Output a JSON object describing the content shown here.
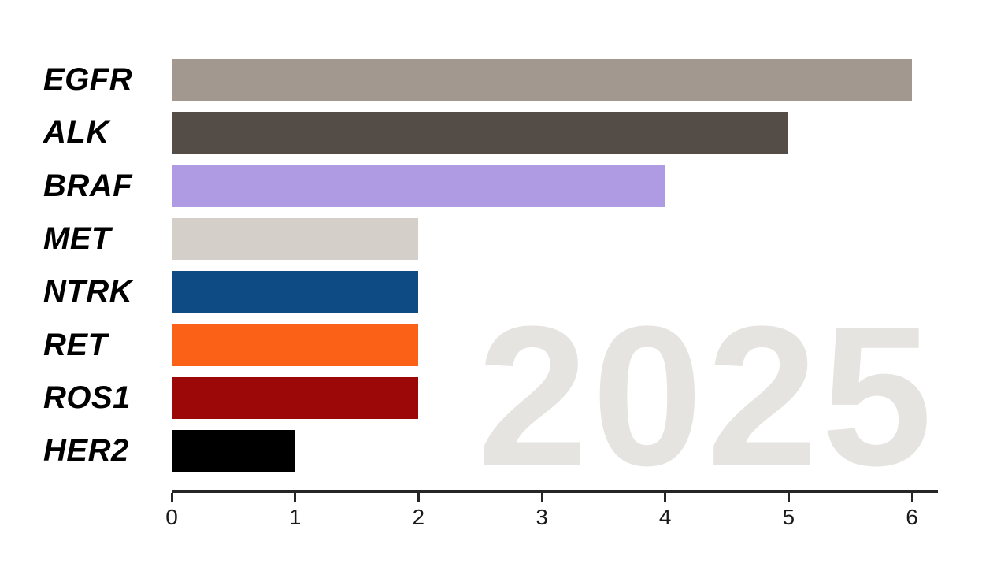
{
  "page": {
    "background": "#ffffff"
  },
  "watermark": {
    "text": "2025",
    "color": "#e6e4e0"
  },
  "chart_data": {
    "type": "bar",
    "orientation": "horizontal",
    "title": "",
    "xlabel": "",
    "ylabel": "",
    "categories": [
      "EGFR",
      "ALK",
      "BRAF",
      "MET",
      "NTRK",
      "RET",
      "ROS1",
      "HER2"
    ],
    "values": [
      6,
      5,
      4,
      2,
      2,
      2,
      2,
      1
    ],
    "bar_colors": [
      "#a29890",
      "#544c47",
      "#af9be4",
      "#d4d0c9",
      "#0e4a84",
      "#fb6217",
      "#9c0808",
      "#000000"
    ],
    "xlim": [
      0,
      6
    ],
    "x_ticks": [
      0,
      1,
      2,
      3,
      4,
      5,
      6
    ],
    "grid": false,
    "legend": false,
    "category_label_style": "bold-italic",
    "axis_color": "#262626",
    "tick_label_color": "#1a1a1a"
  }
}
